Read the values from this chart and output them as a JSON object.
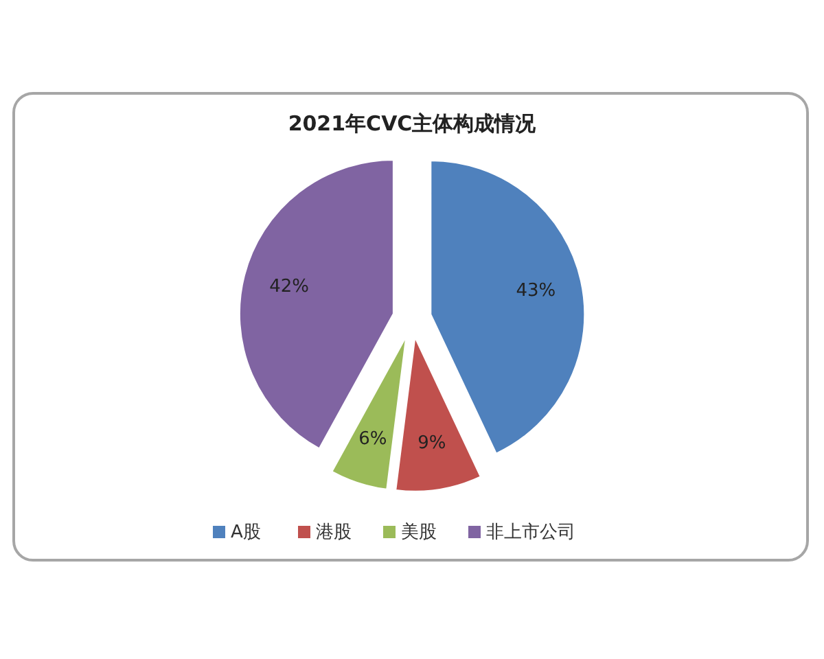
{
  "chart_data": {
    "type": "pie",
    "title": "2021年CVC主体构成情况",
    "categories": [
      "A股",
      "港股",
      "美股",
      "非上市公司"
    ],
    "values": [
      43,
      9,
      6,
      42
    ],
    "value_labels": [
      "43%",
      "9%",
      "6%",
      "42%"
    ],
    "colors": [
      "#4f81bd",
      "#c0504d",
      "#9bbb59",
      "#8064a2"
    ],
    "legend": "bottom"
  }
}
